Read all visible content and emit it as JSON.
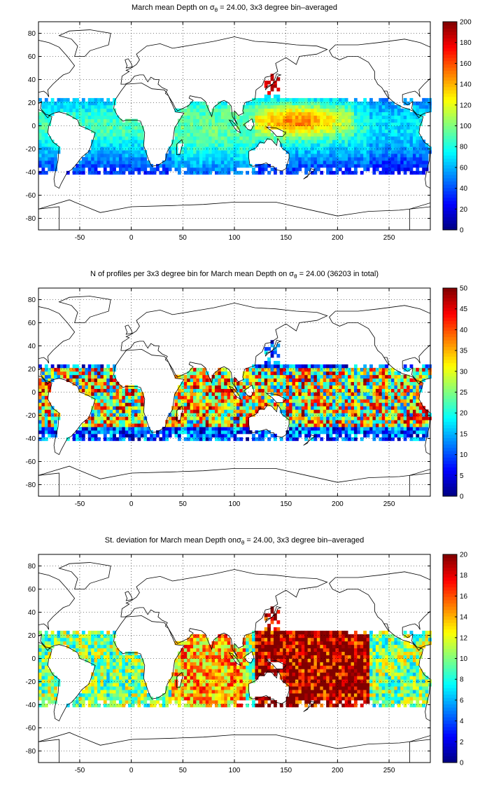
{
  "chart_data": [
    {
      "type": "heatmap",
      "title_prefix": "March mean Depth on ",
      "title_sigma": "σ",
      "title_sub": "θ",
      "title_suffix": " = 24.00, 3x3 degree bin–averaged",
      "x_ticks": [
        -50,
        0,
        50,
        100,
        150,
        200,
        250
      ],
      "y_ticks": [
        -80,
        -60,
        -40,
        -20,
        0,
        20,
        40,
        60,
        80
      ],
      "xlim": [
        -90,
        290
      ],
      "ylim": [
        -90,
        90
      ],
      "grid": true,
      "colorbar": {
        "min": 0,
        "max": 200,
        "ticks": [
          0,
          20,
          40,
          60,
          80,
          100,
          120,
          140,
          160,
          180,
          200
        ]
      },
      "field": "depth"
    },
    {
      "type": "heatmap",
      "title_prefix": "N of profiles per 3x3 degree bin for March mean Depth on ",
      "title_sigma": "σ",
      "title_sub": "θ",
      "title_suffix": " = 24.00 (36203 in total)",
      "x_ticks": [
        -50,
        0,
        50,
        100,
        150,
        200,
        250
      ],
      "y_ticks": [
        -80,
        -60,
        -40,
        -20,
        0,
        20,
        40,
        60,
        80
      ],
      "xlim": [
        -90,
        290
      ],
      "ylim": [
        -90,
        90
      ],
      "grid": true,
      "colorbar": {
        "min": 0,
        "max": 50,
        "ticks": [
          0,
          5,
          10,
          15,
          20,
          25,
          30,
          35,
          40,
          45,
          50
        ]
      },
      "field": "count"
    },
    {
      "type": "heatmap",
      "title_prefix": "St. deviation for March mean Depth on",
      "title_sigma": "σ",
      "title_sub": "θ",
      "title_suffix": " = 24.00, 3x3 degree bin–averaged",
      "x_ticks": [
        -50,
        0,
        50,
        100,
        150,
        200,
        250
      ],
      "y_ticks": [
        -80,
        -60,
        -40,
        -20,
        0,
        20,
        40,
        60,
        80
      ],
      "xlim": [
        -90,
        290
      ],
      "ylim": [
        -90,
        90
      ],
      "grid": true,
      "colorbar": {
        "min": 0,
        "max": 20,
        "ticks": [
          0,
          2,
          4,
          6,
          8,
          10,
          12,
          14,
          16,
          18,
          20
        ]
      },
      "field": "std"
    }
  ],
  "colormap": "jet",
  "land_color": "#ffffff",
  "coast_color": "#000000"
}
